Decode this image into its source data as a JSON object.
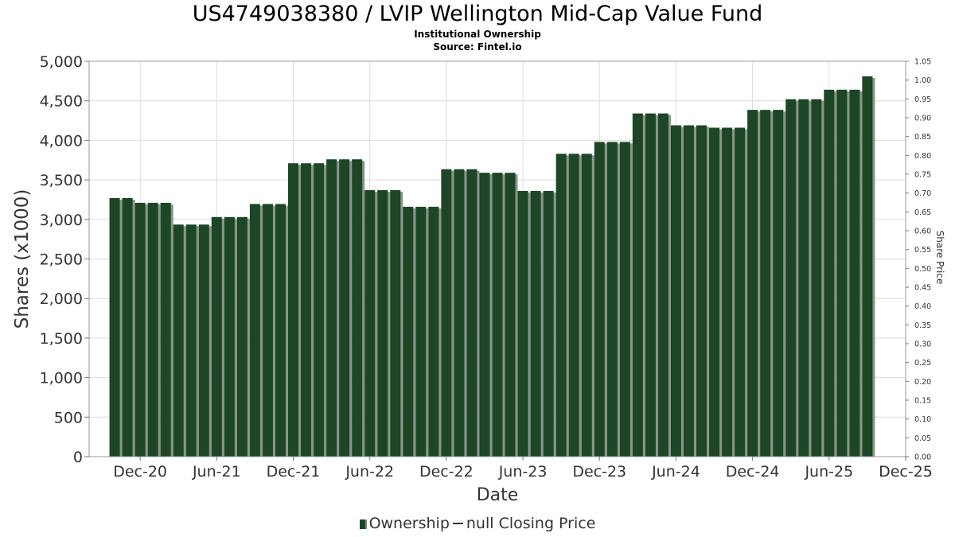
{
  "chart_data": {
    "type": "bar",
    "title": "US4749038380 / LVIP Wellington Mid-Cap Value Fund",
    "subtitle_1": "Institutional Ownership",
    "subtitle_2": "Source: Fintel.io",
    "xlabel": "Date",
    "ylabel": "Shares (x1000)",
    "y2label": "Share Price",
    "ylim": [
      0,
      5000
    ],
    "y2lim": [
      0,
      1.05
    ],
    "x_start": "2020-08",
    "x_end": "2025-12",
    "x_ticks": [
      {
        "label": "Dec-20",
        "date": "2020-12"
      },
      {
        "label": "Jun-21",
        "date": "2021-06"
      },
      {
        "label": "Dec-21",
        "date": "2021-12"
      },
      {
        "label": "Jun-22",
        "date": "2022-06"
      },
      {
        "label": "Dec-22",
        "date": "2022-12"
      },
      {
        "label": "Jun-23",
        "date": "2023-06"
      },
      {
        "label": "Dec-23",
        "date": "2023-12"
      },
      {
        "label": "Jun-24",
        "date": "2024-06"
      },
      {
        "label": "Dec-24",
        "date": "2024-12"
      },
      {
        "label": "Jun-25",
        "date": "2025-06"
      },
      {
        "label": "Dec-25",
        "date": "2025-12"
      }
    ],
    "y_ticks": [
      "0",
      "500",
      "1,000",
      "1,500",
      "2,000",
      "2,500",
      "3,000",
      "3,500",
      "4,000",
      "4,500",
      "5,000"
    ],
    "y2_ticks": [
      "0.00",
      "0.05",
      "0.10",
      "0.15",
      "0.20",
      "0.25",
      "0.30",
      "0.35",
      "0.40",
      "0.45",
      "0.50",
      "0.55",
      "0.60",
      "0.65",
      "0.70",
      "0.75",
      "0.80",
      "0.85",
      "0.90",
      "0.95",
      "1.00",
      "1.05"
    ],
    "grid": true,
    "legend_position": "bottom",
    "series": [
      {
        "name": "Ownership",
        "color": "#1d4626",
        "dates": [
          "2020-10",
          "2020-11",
          "2020-12",
          "2021-01",
          "2021-02",
          "2021-03",
          "2021-04",
          "2021-05",
          "2021-06",
          "2021-07",
          "2021-08",
          "2021-09",
          "2021-10",
          "2021-11",
          "2021-12",
          "2022-01",
          "2022-02",
          "2022-03",
          "2022-04",
          "2022-05",
          "2022-06",
          "2022-07",
          "2022-08",
          "2022-09",
          "2022-10",
          "2022-11",
          "2022-12",
          "2023-01",
          "2023-02",
          "2023-03",
          "2023-04",
          "2023-05",
          "2023-06",
          "2023-07",
          "2023-08",
          "2023-09",
          "2023-10",
          "2023-11",
          "2023-12",
          "2024-01",
          "2024-02",
          "2024-03",
          "2024-04",
          "2024-05",
          "2024-06",
          "2024-07",
          "2024-08",
          "2024-09",
          "2024-10",
          "2024-11",
          "2024-12",
          "2025-01",
          "2025-02",
          "2025-03",
          "2025-04",
          "2025-05",
          "2025-06",
          "2025-07",
          "2025-08",
          "2025-09"
        ],
        "values": [
          3270,
          3270,
          3210,
          3210,
          3210,
          2935,
          2935,
          2935,
          3030,
          3030,
          3030,
          3195,
          3195,
          3195,
          3710,
          3710,
          3710,
          3760,
          3760,
          3760,
          3370,
          3370,
          3370,
          3160,
          3160,
          3160,
          3635,
          3635,
          3635,
          3590,
          3590,
          3590,
          3360,
          3360,
          3360,
          3830,
          3830,
          3830,
          3980,
          3980,
          3980,
          4340,
          4340,
          4340,
          4190,
          4190,
          4190,
          4160,
          4160,
          4160,
          4385,
          4385,
          4385,
          4520,
          4520,
          4520,
          4640,
          4640,
          4640,
          4810
        ]
      },
      {
        "name": "null Closing Price",
        "values": []
      }
    ]
  }
}
